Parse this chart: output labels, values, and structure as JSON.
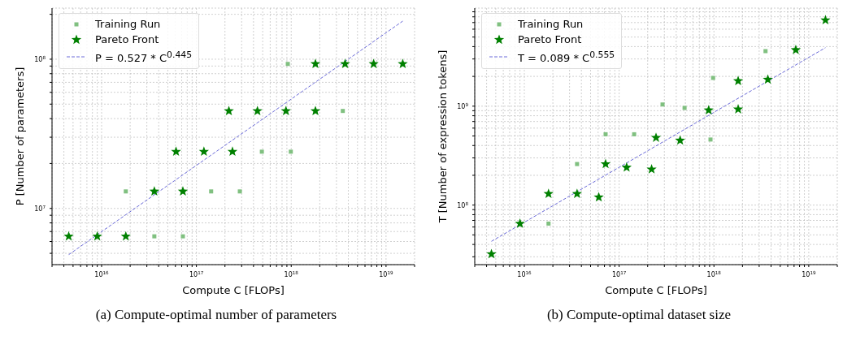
{
  "chart_data": [
    {
      "type": "scatter",
      "xlabel": "Compute C [FLOPs]",
      "ylabel": "P [Number of parameters]",
      "log": "xy",
      "grid": true,
      "legend": "top left",
      "xlim": [
        3000000000000000.0,
        2e+19
      ],
      "ylim": [
        4200000.0,
        220000000.0
      ],
      "xticks": [
        {
          "value": 3000000000000000.0,
          "label": null
        },
        {
          "value": 4000000000000000.0,
          "label": null
        },
        {
          "value": 5000000000000000.0,
          "label": null
        },
        {
          "value": 6000000000000000.0,
          "label": null
        },
        {
          "value": 7000000000000000.0,
          "label": null
        },
        {
          "value": 8000000000000000.0,
          "label": null
        },
        {
          "value": 9000000000000000.0,
          "label": null
        },
        {
          "value": 1e+16,
          "label": "10$^{16}$"
        },
        {
          "value": 2e+16,
          "label": null
        },
        {
          "value": 3e+16,
          "label": null
        },
        {
          "value": 4e+16,
          "label": null
        },
        {
          "value": 5e+16,
          "label": null
        },
        {
          "value": 6e+16,
          "label": null
        },
        {
          "value": 7e+16,
          "label": null
        },
        {
          "value": 8e+16,
          "label": null
        },
        {
          "value": 9e+16,
          "label": null
        },
        {
          "value": 1e+17,
          "label": "10$^{17}$"
        },
        {
          "value": 2e+17,
          "label": null
        },
        {
          "value": 3e+17,
          "label": null
        },
        {
          "value": 4e+17,
          "label": null
        },
        {
          "value": 5e+17,
          "label": null
        },
        {
          "value": 6e+17,
          "label": null
        },
        {
          "value": 7e+17,
          "label": null
        },
        {
          "value": 8e+17,
          "label": null
        },
        {
          "value": 9e+17,
          "label": null
        },
        {
          "value": 1e+18,
          "label": "10$^{18}$"
        },
        {
          "value": 2e+18,
          "label": null
        },
        {
          "value": 3e+18,
          "label": null
        },
        {
          "value": 4e+18,
          "label": null
        },
        {
          "value": 5e+18,
          "label": null
        },
        {
          "value": 6e+18,
          "label": null
        },
        {
          "value": 7e+18,
          "label": null
        },
        {
          "value": 8e+18,
          "label": null
        },
        {
          "value": 9e+18,
          "label": null
        },
        {
          "value": 1e+19,
          "label": "10$^{19}$"
        },
        {
          "value": 2e+19,
          "label": null
        }
      ],
      "yticks": [
        {
          "value": 5000000.0,
          "label": null
        },
        {
          "value": 6000000.0,
          "label": null
        },
        {
          "value": 7000000.0,
          "label": null
        },
        {
          "value": 8000000.0,
          "label": null
        },
        {
          "value": 9000000.0,
          "label": null
        },
        {
          "value": 10000000.0,
          "label": "10$^{7}$"
        },
        {
          "value": 20000000.0,
          "label": null
        },
        {
          "value": 30000000.0,
          "label": null
        },
        {
          "value": 40000000.0,
          "label": null
        },
        {
          "value": 50000000.0,
          "label": null
        },
        {
          "value": 60000000.0,
          "label": null
        },
        {
          "value": 70000000.0,
          "label": null
        },
        {
          "value": 80000000.0,
          "label": null
        },
        {
          "value": 90000000.0,
          "label": null
        },
        {
          "value": 100000000.0,
          "label": "10$^{8}$"
        },
        {
          "value": 200000000.0,
          "label": null
        }
      ],
      "series": [
        {
          "name": "Training Run",
          "type": "scatter",
          "marker": "square",
          "color": "#80c080",
          "x": [
            1.8e+16,
            3.6e+16,
            7.2e+16,
            1.43e+17,
            2.87e+17,
            4.9e+17,
            9.2e+17,
            9.9e+17,
            3.5e+18
          ],
          "values": [
            13000000.0,
            6500000.0,
            6500000.0,
            13000000.0,
            13000000.0,
            24000000.0,
            93000000.0,
            24000000.0,
            45000000.0
          ]
        },
        {
          "name": "Pareto Front",
          "type": "scatter",
          "marker": "star",
          "color": "#008000",
          "x": [
            4500000000000000.0,
            9000000000000000.0,
            1.8e+16,
            3.6e+16,
            6.1e+16,
            7.2e+16,
            1.2e+17,
            2.2e+17,
            2.4e+17,
            4.4e+17,
            8.8e+17,
            1.8e+18,
            1.8e+18,
            3.7e+18,
            7.4e+18,
            1.5e+19
          ],
          "values": [
            6500000.0,
            6500000.0,
            6500000.0,
            13000000.0,
            24000000.0,
            13000000.0,
            24000000.0,
            45000000.0,
            24000000.0,
            45000000.0,
            45000000.0,
            45000000.0,
            93000000.0,
            93000000.0,
            93000000.0,
            93000000.0
          ]
        },
        {
          "name": "P = 0.527 * C$^{0.445}$",
          "type": "line",
          "line_style": "dashed",
          "color": "#6a6ad8",
          "x": [
            4500000000000000.0,
            1.5e+19
          ],
          "values": [
            4900000.0,
            180000000.0
          ]
        }
      ],
      "annotations": [
        "(a) Compute-optimal number of parameters"
      ]
    },
    {
      "type": "scatter",
      "xlabel": "Compute C [FLOPs]",
      "ylabel": "T [Number of expression tokens]",
      "log": "xy",
      "grid": true,
      "legend": "top left",
      "xlim": [
        3000000000000000.0,
        2e+19
      ],
      "ylim": [
        25000000.0,
        9800000000.0
      ],
      "xticks": [
        {
          "value": 3000000000000000.0,
          "label": null
        },
        {
          "value": 4000000000000000.0,
          "label": null
        },
        {
          "value": 5000000000000000.0,
          "label": null
        },
        {
          "value": 6000000000000000.0,
          "label": null
        },
        {
          "value": 7000000000000000.0,
          "label": null
        },
        {
          "value": 8000000000000000.0,
          "label": null
        },
        {
          "value": 9000000000000000.0,
          "label": null
        },
        {
          "value": 1e+16,
          "label": "10$^{16}$"
        },
        {
          "value": 2e+16,
          "label": null
        },
        {
          "value": 3e+16,
          "label": null
        },
        {
          "value": 4e+16,
          "label": null
        },
        {
          "value": 5e+16,
          "label": null
        },
        {
          "value": 6e+16,
          "label": null
        },
        {
          "value": 7e+16,
          "label": null
        },
        {
          "value": 8e+16,
          "label": null
        },
        {
          "value": 9e+16,
          "label": null
        },
        {
          "value": 1e+17,
          "label": "10$^{17}$"
        },
        {
          "value": 2e+17,
          "label": null
        },
        {
          "value": 3e+17,
          "label": null
        },
        {
          "value": 4e+17,
          "label": null
        },
        {
          "value": 5e+17,
          "label": null
        },
        {
          "value": 6e+17,
          "label": null
        },
        {
          "value": 7e+17,
          "label": null
        },
        {
          "value": 8e+17,
          "label": null
        },
        {
          "value": 9e+17,
          "label": null
        },
        {
          "value": 1e+18,
          "label": "10$^{18}$"
        },
        {
          "value": 2e+18,
          "label": null
        },
        {
          "value": 3e+18,
          "label": null
        },
        {
          "value": 4e+18,
          "label": null
        },
        {
          "value": 5e+18,
          "label": null
        },
        {
          "value": 6e+18,
          "label": null
        },
        {
          "value": 7e+18,
          "label": null
        },
        {
          "value": 8e+18,
          "label": null
        },
        {
          "value": 9e+18,
          "label": null
        },
        {
          "value": 1e+19,
          "label": "10$^{19}$"
        },
        {
          "value": 2e+19,
          "label": null
        }
      ],
      "yticks": [
        {
          "value": 30000000.0,
          "label": null
        },
        {
          "value": 40000000.0,
          "label": null
        },
        {
          "value": 50000000.0,
          "label": null
        },
        {
          "value": 60000000.0,
          "label": null
        },
        {
          "value": 70000000.0,
          "label": null
        },
        {
          "value": 80000000.0,
          "label": null
        },
        {
          "value": 90000000.0,
          "label": null
        },
        {
          "value": 100000000.0,
          "label": "10$^{8}$"
        },
        {
          "value": 200000000.0,
          "label": null
        },
        {
          "value": 300000000.0,
          "label": null
        },
        {
          "value": 400000000.0,
          "label": null
        },
        {
          "value": 500000000.0,
          "label": null
        },
        {
          "value": 600000000.0,
          "label": null
        },
        {
          "value": 700000000.0,
          "label": null
        },
        {
          "value": 800000000.0,
          "label": null
        },
        {
          "value": 900000000.0,
          "label": null
        },
        {
          "value": 1000000000.0,
          "label": "10$^{9}$"
        },
        {
          "value": 2000000000.0,
          "label": null
        },
        {
          "value": 3000000000.0,
          "label": null
        },
        {
          "value": 4000000000.0,
          "label": null
        },
        {
          "value": 5000000000.0,
          "label": null
        },
        {
          "value": 6000000000.0,
          "label": null
        },
        {
          "value": 7000000000.0,
          "label": null
        },
        {
          "value": 8000000000.0,
          "label": null
        },
        {
          "value": 9000000000.0,
          "label": null
        }
      ],
      "series": [
        {
          "name": "Training Run",
          "type": "scatter",
          "marker": "square",
          "color": "#80c080",
          "x": [
            1.8e+16,
            3.6e+16,
            7.2e+16,
            1.44e+17,
            2.87e+17,
            4.9e+17,
            9.2e+17,
            9.8e+17,
            3.5e+18
          ],
          "values": [
            65000000.0,
            260000000.0,
            520000000.0,
            520000000.0,
            1040000000.0,
            960000000.0,
            460000000.0,
            1930000000.0,
            3600000000.0
          ]
        },
        {
          "name": "Pareto Front",
          "type": "scatter",
          "marker": "star",
          "color": "#008000",
          "x": [
            4500000000000000.0,
            9000000000000000.0,
            1.8e+16,
            3.6e+16,
            6.1e+16,
            7.2e+16,
            1.2e+17,
            2.2e+17,
            2.45e+17,
            4.4e+17,
            8.8e+17,
            1.8e+18,
            1.8e+18,
            3.7e+18,
            7.3e+18,
            1.5e+19
          ],
          "values": [
            32000000.0,
            65000000.0,
            130000000.0,
            130000000.0,
            120000000.0,
            260000000.0,
            240000000.0,
            230000000.0,
            480000000.0,
            450000000.0,
            910000000.0,
            1800000000.0,
            930000000.0,
            1860000000.0,
            3700000000.0,
            7400000000.0
          ]
        },
        {
          "name": "T = 0.089 * C$^{0.555}$",
          "type": "line",
          "line_style": "dashed",
          "color": "#6a6ad8",
          "x": [
            4500000000000000.0,
            1.5e+19
          ],
          "values": [
            43000000.0,
            3900000000.0
          ]
        }
      ],
      "annotations": [
        "(b) Compute-optimal dataset size"
      ]
    }
  ]
}
